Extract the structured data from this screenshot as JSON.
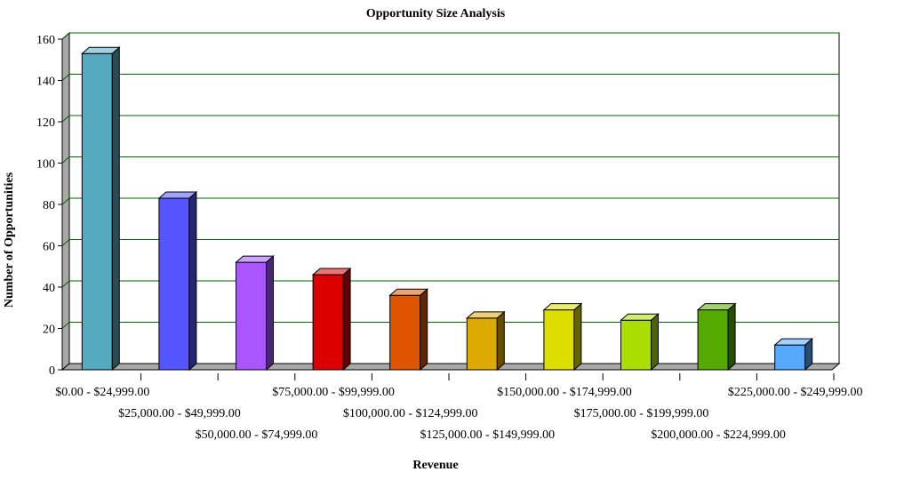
{
  "chart_data": {
    "type": "bar",
    "title": "Opportunity Size Analysis",
    "xlabel": "Revenue",
    "ylabel": "Number of Opportunities",
    "ylim": [
      0,
      160
    ],
    "yticks": [
      0,
      20,
      40,
      60,
      80,
      100,
      120,
      140,
      160
    ],
    "grid": true,
    "categories": [
      "$0.00 - $24,999.00",
      "$25,000.00 - $49,999.00",
      "$50,000.00 - $74,999.00",
      "$75,000.00 - $99,999.00",
      "$100,000.00 - $124,999.00",
      "$125,000.00 - $149,999.00",
      "$150,000.00 - $174,999.00",
      "$175,000.00 - $199,999.00",
      "$200,000.00 - $224,999.00",
      "$225,000.00 - $249,999.00"
    ],
    "values": [
      153,
      83,
      52,
      46,
      36,
      25,
      29,
      24,
      29,
      12
    ],
    "colors": [
      "#55AAC0",
      "#5555FF",
      "#AA55FF",
      "#DD0000",
      "#DD5500",
      "#DDAA00",
      "#DDDD00",
      "#AADD00",
      "#55AA00",
      "#55AAFF"
    ]
  }
}
